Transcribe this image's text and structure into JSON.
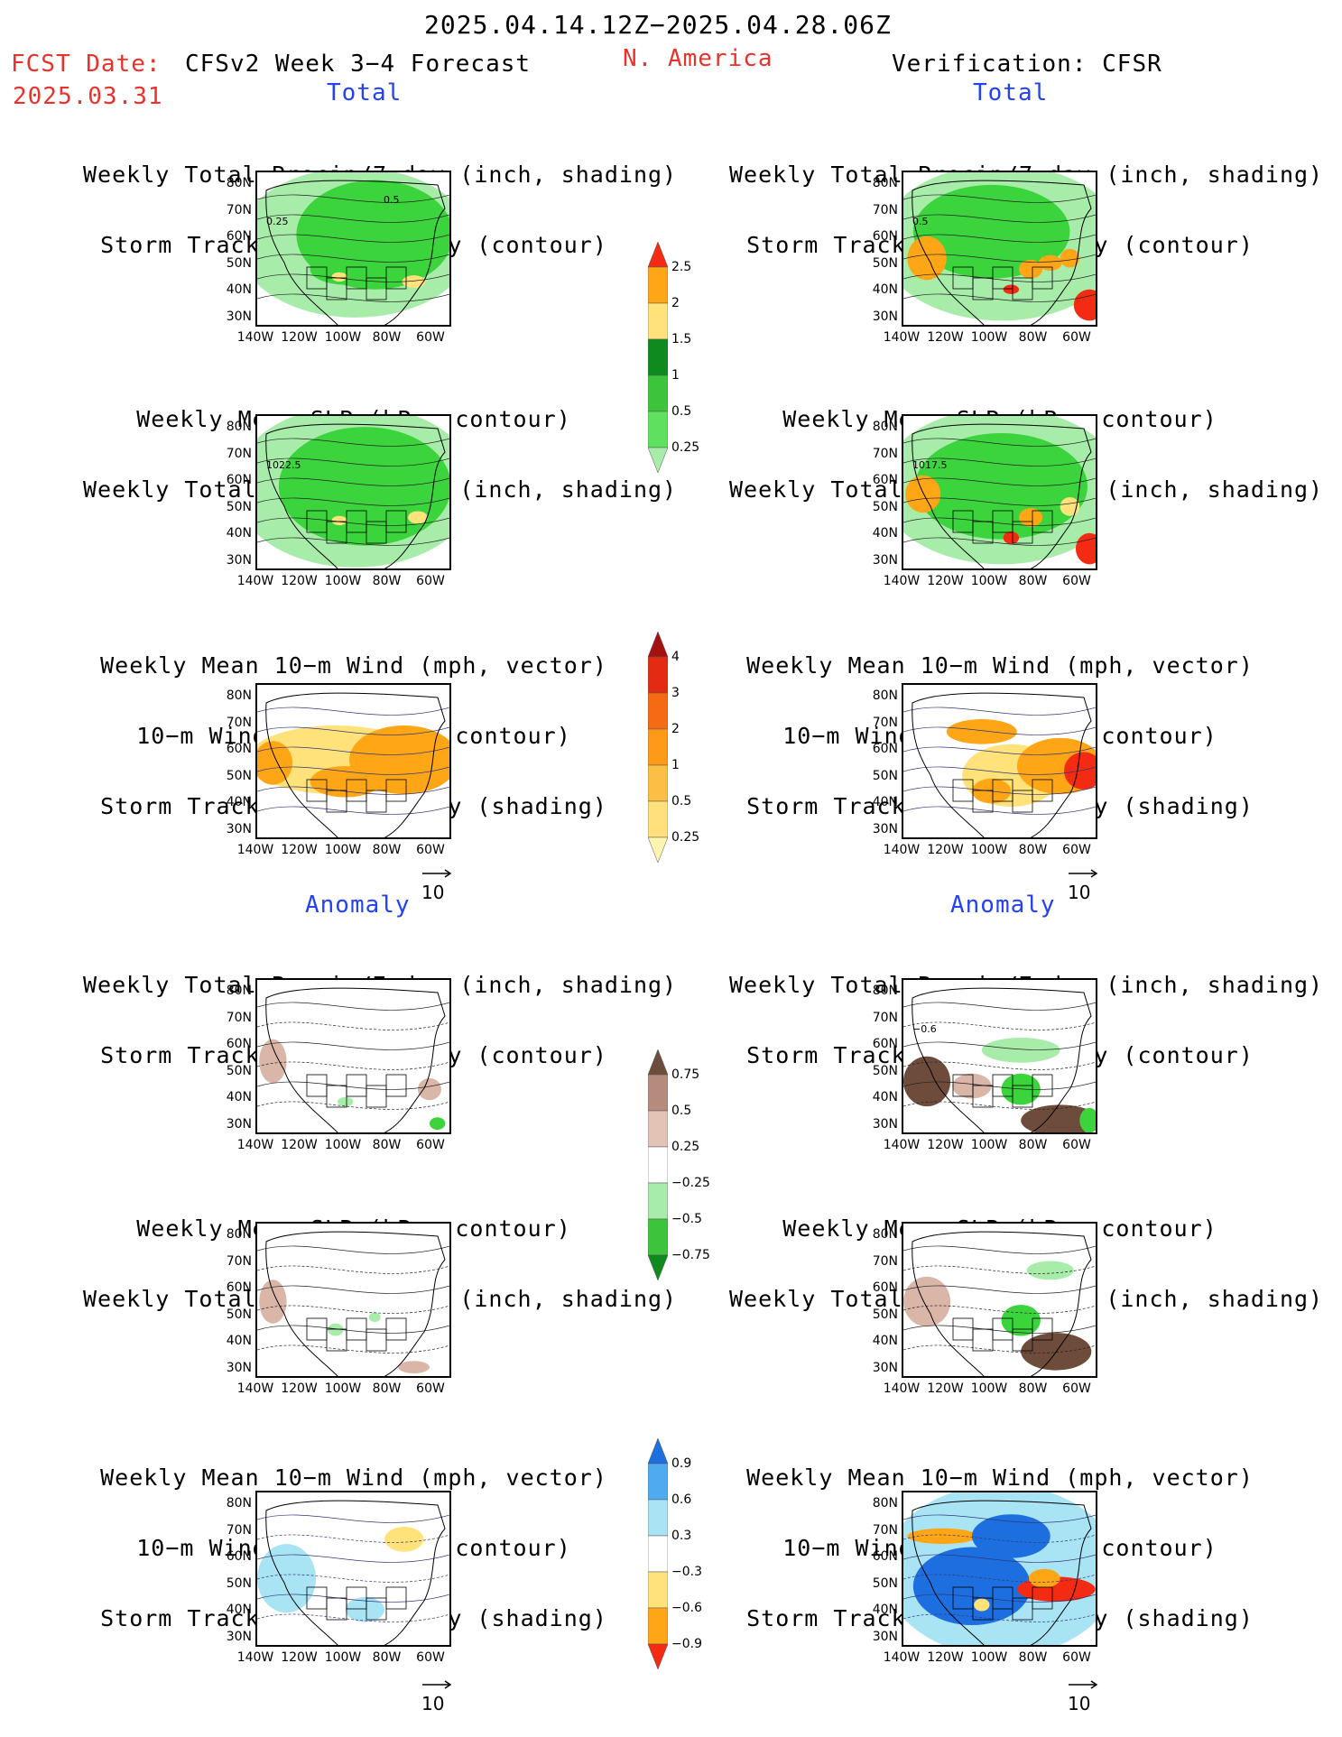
{
  "header": {
    "period": "2025.04.14.12Z−2025.04.28.06Z",
    "region": "N. America",
    "fcst_label": "FCST Date:",
    "fcst_date": "2025.03.31",
    "model": "CFSv2 Week 3−4 Forecast",
    "verification": "Verification: CFSR"
  },
  "sections": {
    "total": "Total",
    "anomaly": "Anomaly"
  },
  "panel_titles": {
    "precip_storm": [
      "Weekly Total Precip/7−day (inch, shading)",
      "Storm Track Density/7−day (contour)"
    ],
    "slp_precip": [
      "Weekly Mean SLP (hPa, contour)",
      "Weekly Total Precip/7−day (inch, shading)"
    ],
    "wind_storm": [
      "Weekly Mean 10−m Wind (mph, vector)",
      "10−m Wind Speed (mph, contour)",
      "Storm Track Density/7−day (shading)"
    ]
  },
  "axes": {
    "lat_ticks": [
      "80N",
      "70N",
      "60N",
      "50N",
      "40N",
      "30N"
    ],
    "lon_ticks": [
      "140W",
      "120W",
      "100W",
      "80W",
      "60W"
    ]
  },
  "vector_ref": "10",
  "map_labels": {
    "fc_total_precip": [
      "0.25",
      "0.5"
    ],
    "vf_total_precip": [
      "0.5"
    ],
    "fc_total_slp": [
      "1022.5"
    ],
    "vf_total_slp": [
      "1017.5"
    ],
    "vf_anom_precip": [
      "−0.6"
    ]
  },
  "colors": {
    "precip_green_dark": "#0f8a1f",
    "precip_green": "#3cd43c",
    "precip_green_light": "#a8ecaa",
    "precip_yellow": "#ffe27a",
    "precip_orange": "#ffa617",
    "precip_red": "#f22b12",
    "dry_brown": "#6e4c3c",
    "dry_tan": "#d9b6a8",
    "cool_blue": "#1d6fe0",
    "cool_lightblue": "#a9e4f5",
    "title_red": "#e8322c",
    "title_blue": "#2342f5"
  },
  "chart_data": [
    {
      "type": "heatmap",
      "name_ref": "colorbar-total-precip",
      "levels": [
        "0.25",
        "0.5",
        "1",
        "1.5",
        "2",
        "2.5"
      ],
      "colors": [
        "#a8ecaa",
        "#5fe05f",
        "#3cc43c",
        "#0f8a1f",
        "#ffe27a",
        "#ffa617",
        "#f22b12"
      ]
    },
    {
      "type": "heatmap",
      "name_ref": "colorbar-total-storm",
      "levels": [
        "0.25",
        "0.5",
        "1",
        "2",
        "3",
        "4"
      ],
      "colors": [
        "#fff5b0",
        "#ffe07a",
        "#fbbf45",
        "#ff9a19",
        "#f56a12",
        "#e32a12",
        "#a5110e"
      ]
    },
    {
      "type": "heatmap",
      "name_ref": "colorbar-anom-precip",
      "levels": [
        "0.75",
        "0.5",
        "0.25",
        "−0.25",
        "−0.5",
        "−0.75"
      ],
      "colors": [
        "#0f8a1f",
        "#3cc43c",
        "#a8ecaa",
        "#ffffff",
        "#e3c3b6",
        "#b48b7d",
        "#6e4c3c"
      ]
    },
    {
      "type": "heatmap",
      "name_ref": "colorbar-anom-storm",
      "levels": [
        "0.9",
        "0.6",
        "0.3",
        "−0.3",
        "−0.6",
        "−0.9"
      ],
      "colors": [
        "#f22b12",
        "#ffa617",
        "#ffe27a",
        "#ffffff",
        "#a9e4f5",
        "#50aaf0",
        "#1d6fe0"
      ]
    }
  ]
}
